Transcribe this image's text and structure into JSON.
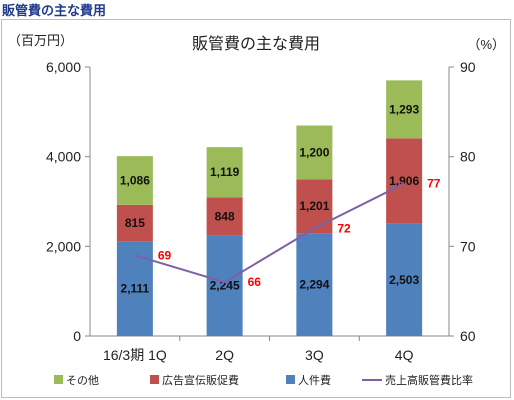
{
  "page_heading": "販管費の主な費用",
  "chart_data": {
    "type": "bar",
    "stacked": true,
    "title": "販管費の主な費用",
    "y_unit_left": "（百万円）",
    "y_unit_right": "（%）",
    "categories": [
      "16/3期 1Q",
      "2Q",
      "3Q",
      "4Q"
    ],
    "ylim": [
      0,
      6000
    ],
    "yticks": [
      0,
      2000,
      4000,
      6000
    ],
    "ytick_labels": [
      "0",
      "2,000",
      "4,000",
      "6,000"
    ],
    "y2lim": [
      60,
      90
    ],
    "y2ticks": [
      60,
      70,
      80,
      90
    ],
    "y2tick_labels": [
      "60",
      "70",
      "80",
      "90"
    ],
    "grid": false,
    "legend_position": "bottom",
    "series": [
      {
        "name": "人件費",
        "color": "#4f81bd",
        "values": [
          2111,
          2245,
          2294,
          2503
        ],
        "labels": [
          "2,111",
          "2,245",
          "2,294",
          "2,503"
        ]
      },
      {
        "name": "広告宣伝販促費",
        "color": "#c0504d",
        "values": [
          815,
          848,
          1201,
          1906
        ],
        "labels": [
          "815",
          "848",
          "1,201",
          "1,906"
        ]
      },
      {
        "name": "その他",
        "color": "#9bbb59",
        "values": [
          1086,
          1119,
          1200,
          1293
        ],
        "labels": [
          "1,086",
          "1,119",
          "1,200",
          "1,293"
        ]
      }
    ],
    "line_series": {
      "name": "売上高販管費比率",
      "color": "#7f5fa6",
      "axis": "right",
      "values": [
        69,
        66,
        72,
        77
      ],
      "labels": [
        "69",
        "66",
        "72",
        "77"
      ],
      "label_color": "#ff0000"
    },
    "legend_order": [
      "その他",
      "広告宣伝販促費",
      "人件費",
      "売上高販管費比率"
    ]
  }
}
